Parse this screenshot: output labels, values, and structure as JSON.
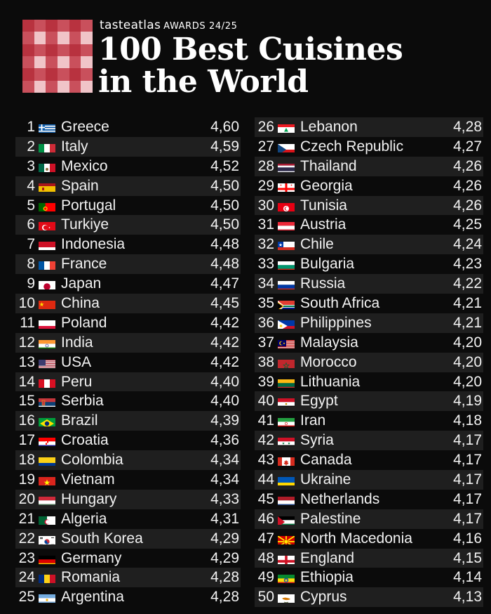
{
  "header": {
    "brand": "tasteatlas",
    "awards": "AWARDS 24/25",
    "title_line1": "100 Best Cuisines",
    "title_line2": "in the World"
  },
  "colors": {
    "background": "#0b0b0b",
    "alt_row": "#1f1f1f",
    "logo_red": "#c9505c",
    "logo_pink": "#f0c4c8"
  },
  "left": [
    {
      "rank": "1",
      "country": "Greece",
      "score": "4,60",
      "flag": "greece"
    },
    {
      "rank": "2",
      "country": "Italy",
      "score": "4,59",
      "flag": "italy"
    },
    {
      "rank": "3",
      "country": "Mexico",
      "score": "4,52",
      "flag": "mexico"
    },
    {
      "rank": "4",
      "country": "Spain",
      "score": "4,50",
      "flag": "spain"
    },
    {
      "rank": "5",
      "country": "Portugal",
      "score": "4,50",
      "flag": "portugal"
    },
    {
      "rank": "6",
      "country": "Turkiye",
      "score": "4,50",
      "flag": "turkiye"
    },
    {
      "rank": "7",
      "country": "Indonesia",
      "score": "4,48",
      "flag": "indonesia"
    },
    {
      "rank": "8",
      "country": "France",
      "score": "4,48",
      "flag": "france"
    },
    {
      "rank": "9",
      "country": "Japan",
      "score": "4,47",
      "flag": "japan"
    },
    {
      "rank": "10",
      "country": "China",
      "score": "4,45",
      "flag": "china"
    },
    {
      "rank": "11",
      "country": "Poland",
      "score": "4,42",
      "flag": "poland"
    },
    {
      "rank": "12",
      "country": "India",
      "score": "4,42",
      "flag": "india"
    },
    {
      "rank": "13",
      "country": "USA",
      "score": "4,42",
      "flag": "usa"
    },
    {
      "rank": "14",
      "country": "Peru",
      "score": "4,40",
      "flag": "peru"
    },
    {
      "rank": "15",
      "country": "Serbia",
      "score": "4,40",
      "flag": "serbia"
    },
    {
      "rank": "16",
      "country": "Brazil",
      "score": "4,39",
      "flag": "brazil"
    },
    {
      "rank": "17",
      "country": "Croatia",
      "score": "4,36",
      "flag": "croatia"
    },
    {
      "rank": "18",
      "country": "Colombia",
      "score": "4,34",
      "flag": "colombia"
    },
    {
      "rank": "19",
      "country": "Vietnam",
      "score": "4,34",
      "flag": "vietnam"
    },
    {
      "rank": "20",
      "country": "Hungary",
      "score": "4,33",
      "flag": "hungary"
    },
    {
      "rank": "21",
      "country": "Algeria",
      "score": "4,31",
      "flag": "algeria"
    },
    {
      "rank": "22",
      "country": "South Korea",
      "score": "4,29",
      "flag": "south-korea"
    },
    {
      "rank": "23",
      "country": "Germany",
      "score": "4,29",
      "flag": "germany"
    },
    {
      "rank": "24",
      "country": "Romania",
      "score": "4,28",
      "flag": "romania"
    },
    {
      "rank": "25",
      "country": "Argentina",
      "score": "4,28",
      "flag": "argentina"
    }
  ],
  "right": [
    {
      "rank": "26",
      "country": "Lebanon",
      "score": "4,28",
      "flag": "lebanon"
    },
    {
      "rank": "27",
      "country": "Czech Republic",
      "score": "4,27",
      "flag": "czech-republic"
    },
    {
      "rank": "28",
      "country": "Thailand",
      "score": "4,26",
      "flag": "thailand"
    },
    {
      "rank": "29",
      "country": "Georgia",
      "score": "4,26",
      "flag": "georgia"
    },
    {
      "rank": "30",
      "country": "Tunisia",
      "score": "4,26",
      "flag": "tunisia"
    },
    {
      "rank": "31",
      "country": "Austria",
      "score": "4,25",
      "flag": "austria"
    },
    {
      "rank": "32",
      "country": "Chile",
      "score": "4,24",
      "flag": "chile"
    },
    {
      "rank": "33",
      "country": "Bulgaria",
      "score": "4,23",
      "flag": "bulgaria"
    },
    {
      "rank": "34",
      "country": "Russia",
      "score": "4,22",
      "flag": "russia"
    },
    {
      "rank": "35",
      "country": "South Africa",
      "score": "4,21",
      "flag": "south-africa"
    },
    {
      "rank": "36",
      "country": "Philippines",
      "score": "4,21",
      "flag": "philippines"
    },
    {
      "rank": "37",
      "country": "Malaysia",
      "score": "4,20",
      "flag": "malaysia"
    },
    {
      "rank": "38",
      "country": "Morocco",
      "score": "4,20",
      "flag": "morocco"
    },
    {
      "rank": "39",
      "country": "Lithuania",
      "score": "4,20",
      "flag": "lithuania"
    },
    {
      "rank": "40",
      "country": "Egypt",
      "score": "4,19",
      "flag": "egypt"
    },
    {
      "rank": "41",
      "country": "Iran",
      "score": "4,18",
      "flag": "iran"
    },
    {
      "rank": "42",
      "country": "Syria",
      "score": "4,17",
      "flag": "syria"
    },
    {
      "rank": "43",
      "country": "Canada",
      "score": "4,17",
      "flag": "canada"
    },
    {
      "rank": "44",
      "country": "Ukraine",
      "score": "4,17",
      "flag": "ukraine"
    },
    {
      "rank": "45",
      "country": "Netherlands",
      "score": "4,17",
      "flag": "netherlands"
    },
    {
      "rank": "46",
      "country": "Palestine",
      "score": "4,17",
      "flag": "palestine"
    },
    {
      "rank": "47",
      "country": "North Macedonia",
      "score": "4,16",
      "flag": "north-macedonia"
    },
    {
      "rank": "48",
      "country": "England",
      "score": "4,15",
      "flag": "england"
    },
    {
      "rank": "49",
      "country": "Ethiopia",
      "score": "4,14",
      "flag": "ethiopia"
    },
    {
      "rank": "50",
      "country": "Cyprus",
      "score": "4,13",
      "flag": "cyprus"
    }
  ]
}
